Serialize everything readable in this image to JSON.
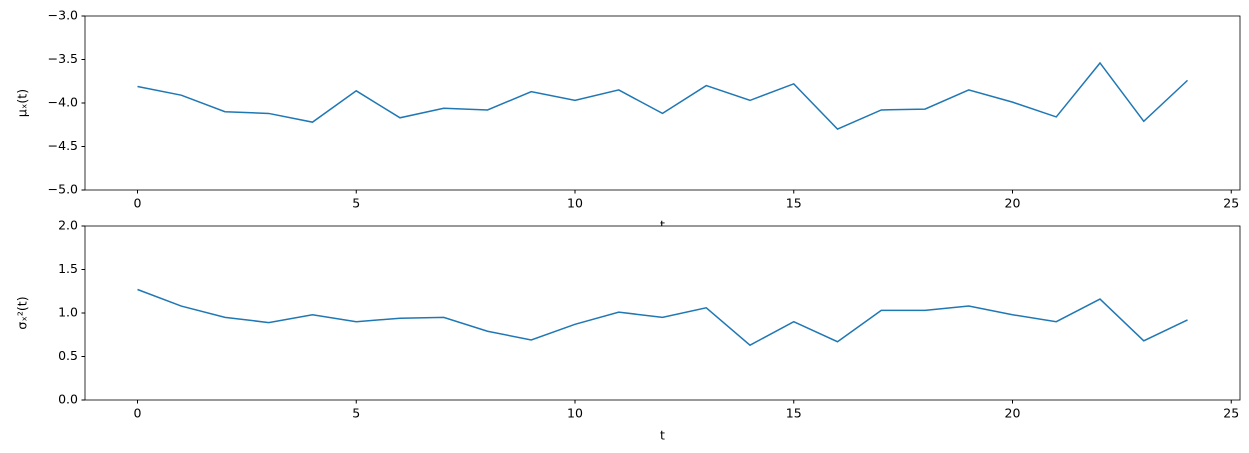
{
  "chart_data": [
    {
      "type": "line",
      "x_label": "t",
      "y_label": "μₓ(t)",
      "x": [
        0,
        1,
        2,
        3,
        4,
        5,
        6,
        7,
        8,
        9,
        10,
        11,
        12,
        13,
        14,
        15,
        16,
        17,
        18,
        19,
        20,
        21,
        22,
        23,
        24
      ],
      "series": [
        {
          "color": "#1f77b4",
          "values": [
            -3.81,
            -3.91,
            -4.1,
            -4.12,
            -4.22,
            -3.86,
            -4.17,
            -4.06,
            -4.08,
            -3.87,
            -3.97,
            -3.85,
            -4.12,
            -3.8,
            -3.97,
            -3.78,
            -4.3,
            -4.08,
            -4.07,
            -3.85,
            -3.99,
            -4.16,
            -3.54,
            -4.21,
            -3.74
          ]
        }
      ],
      "xlim": [
        -1.2,
        25.2
      ],
      "xticks": [
        0,
        5,
        10,
        15,
        20,
        25
      ],
      "ylim": [
        -5,
        -3
      ],
      "yticks": [
        {
          "value": -5,
          "label": "−5.0"
        },
        {
          "value": -4.5,
          "label": "−4.5"
        },
        {
          "value": -4,
          "label": "−4.0"
        },
        {
          "value": -3.5,
          "label": "−3.5"
        },
        {
          "value": -3,
          "label": "−3.0"
        }
      ]
    },
    {
      "type": "line",
      "x_label": "t",
      "y_label": "σₓ²(t)",
      "x": [
        0,
        1,
        2,
        3,
        4,
        5,
        6,
        7,
        8,
        9,
        10,
        11,
        12,
        13,
        14,
        15,
        16,
        17,
        18,
        19,
        20,
        21,
        22,
        23,
        24
      ],
      "series": [
        {
          "color": "#1f77b4",
          "values": [
            1.27,
            1.08,
            0.95,
            0.89,
            0.98,
            0.9,
            0.94,
            0.95,
            0.79,
            0.69,
            0.87,
            1.01,
            0.95,
            1.06,
            0.63,
            0.9,
            0.67,
            1.03,
            1.03,
            1.08,
            0.98,
            0.9,
            1.16,
            0.68,
            0.92
          ]
        }
      ],
      "xlim": [
        -1.2,
        25.2
      ],
      "xticks": [
        0,
        5,
        10,
        15,
        20,
        25
      ],
      "ylim": [
        0,
        2
      ],
      "yticks": [
        {
          "value": 0,
          "label": "0.0"
        },
        0.5,
        {
          "value": 1,
          "label": "1.0"
        },
        1.5,
        {
          "value": 2,
          "label": "2.0"
        }
      ]
    }
  ]
}
